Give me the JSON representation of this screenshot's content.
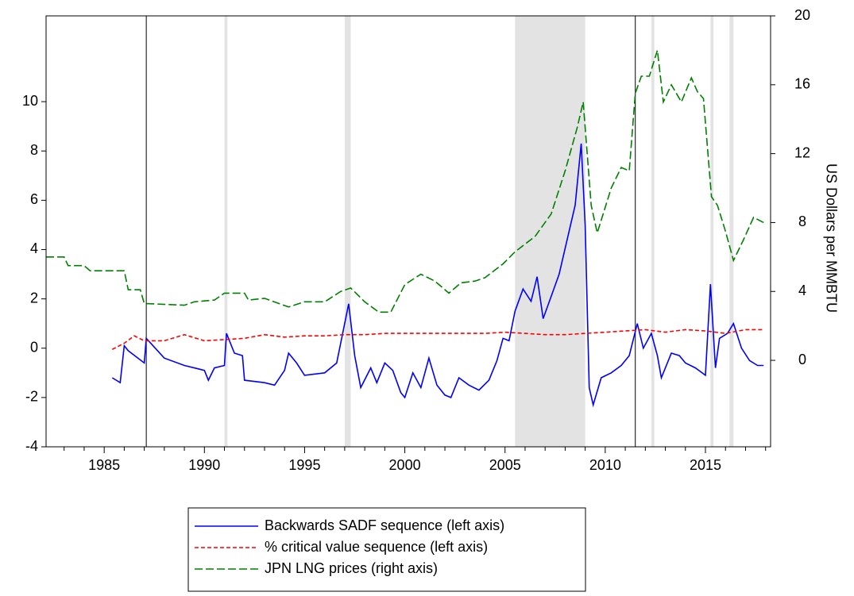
{
  "chart_data": {
    "type": "line",
    "y2label": "US Dollars per MMBTU",
    "xlim": [
      1982.1,
      2018.25
    ],
    "xticks": [
      1985,
      1990,
      1995,
      2000,
      2005,
      2010,
      2015
    ],
    "xminorticks": [
      1983,
      1984,
      1986,
      1987,
      1988,
      1989,
      1991,
      1992,
      1993,
      1994,
      1996,
      1997,
      1998,
      1999,
      2001,
      2002,
      2003,
      2004,
      2006,
      2007,
      2008,
      2009,
      2011,
      2012,
      2013,
      2014,
      2016,
      2017,
      2018
    ],
    "ylim": [
      -4,
      13.48
    ],
    "yticks": [
      -4,
      -2,
      0,
      2,
      4,
      6,
      8,
      10
    ],
    "y2lim": [
      -5.02,
      20
    ],
    "y2ticks": [
      0,
      4,
      8,
      12,
      16,
      20
    ],
    "shaded_periods": [
      [
        1991.0,
        1991.15
      ],
      [
        1997.0,
        1997.3
      ],
      [
        2005.5,
        2009.0
      ],
      [
        2012.3,
        2012.45
      ],
      [
        2015.25,
        2015.4
      ],
      [
        2016.2,
        2016.4
      ]
    ],
    "vertical_lines": [
      1987.1,
      2011.5
    ],
    "series": [
      {
        "name": "Backwards SADF sequence (left axis)",
        "color": "#0000ff",
        "dash": "none",
        "x": [
          1985.4,
          1985.8,
          1986.0,
          1986.2,
          1987.0,
          1987.1,
          1988,
          1989,
          1990,
          1990.2,
          1990.5,
          1991.0,
          1991.1,
          1991.5,
          1991.9,
          1992,
          1993,
          1993.5,
          1994,
          1994.2,
          1994.6,
          1995,
          1996,
          1996.6,
          1997.2,
          1997.5,
          1997.8,
          1998.3,
          1998.6,
          1999,
          1999.4,
          1999.8,
          2000,
          2000.4,
          2000.8,
          2001.2,
          2001.6,
          2002,
          2002.3,
          2002.7,
          2003.2,
          2003.7,
          2004.2,
          2004.6,
          2004.9,
          2005.2,
          2005.5,
          2005.9,
          2006.3,
          2006.6,
          2006.9,
          2007.3,
          2007.7,
          2008.1,
          2008.5,
          2008.8,
          2009.0,
          2009.2,
          2009.4,
          2009.8,
          2010.3,
          2010.8,
          2011.2,
          2011.6,
          2011.9,
          2012.3,
          2012.6,
          2012.8,
          2013.3,
          2013.7,
          2014,
          2014.5,
          2015.0,
          2015.25,
          2015.5,
          2015.7,
          2016.1,
          2016.4,
          2016.8,
          2017.2,
          2017.6,
          2017.9
        ],
        "values": [
          -1.2,
          -1.4,
          0.1,
          -0.1,
          -0.6,
          0.4,
          -0.4,
          -0.7,
          -0.9,
          -1.3,
          -0.8,
          -0.7,
          0.6,
          -0.2,
          -0.3,
          -1.3,
          -1.4,
          -1.5,
          -0.9,
          -0.2,
          -0.6,
          -1.1,
          -1.0,
          -0.6,
          1.8,
          -0.3,
          -1.6,
          -0.8,
          -1.4,
          -0.6,
          -0.9,
          -1.8,
          -2.0,
          -1.0,
          -1.6,
          -0.4,
          -1.5,
          -1.9,
          -2.0,
          -1.2,
          -1.5,
          -1.7,
          -1.3,
          -0.5,
          0.4,
          0.3,
          1.5,
          2.4,
          1.9,
          2.9,
          1.2,
          2.1,
          3.0,
          4.4,
          5.8,
          8.3,
          5.0,
          -1.6,
          -2.3,
          -1.2,
          -1.0,
          -0.7,
          -0.3,
          1.0,
          0.0,
          0.6,
          -0.3,
          -1.2,
          -0.2,
          -0.3,
          -0.6,
          -0.8,
          -1.1,
          2.6,
          -0.8,
          0.4,
          0.6,
          1.0,
          0.0,
          -0.5,
          -0.7,
          -0.7
        ]
      },
      {
        "name": "% critical value sequence (left axis)",
        "color": "#ff0000",
        "dash": "5,3",
        "x": [
          1985.4,
          1986,
          1986.5,
          1987,
          1988,
          1989,
          1990,
          1991,
          1992,
          1993,
          1994,
          1995,
          1996,
          1997,
          1998,
          1999,
          2000,
          2001,
          2002,
          2003,
          2004,
          2005,
          2006,
          2007,
          2008,
          2009,
          2010,
          2011,
          2012,
          2013,
          2014,
          2015,
          2016,
          2017,
          2017.9
        ],
        "values": [
          -0.05,
          0.2,
          0.5,
          0.3,
          0.3,
          0.55,
          0.3,
          0.35,
          0.4,
          0.55,
          0.45,
          0.5,
          0.5,
          0.55,
          0.55,
          0.6,
          0.6,
          0.6,
          0.6,
          0.6,
          0.6,
          0.65,
          0.6,
          0.55,
          0.55,
          0.6,
          0.65,
          0.7,
          0.75,
          0.65,
          0.75,
          0.7,
          0.6,
          0.75,
          0.75
        ]
      },
      {
        "name": "JPN LNG prices (right axis)",
        "color": "#008000",
        "dash": "10,4",
        "axis": "y2",
        "x": [
          1982.1,
          1983,
          1983.2,
          1984,
          1984.3,
          1986,
          1986.2,
          1986.8,
          1987.0,
          1989,
          1989.5,
          1990.5,
          1991,
          1992,
          1992.2,
          1993,
          1994.2,
          1995,
          1996,
          1996.8,
          1997.3,
          1998,
          1998.7,
          1999.3,
          2000,
          2000.8,
          2001.5,
          2002.2,
          2002.8,
          2003.5,
          2004,
          2004.9,
          2005.5,
          2006.5,
          2007.3,
          2008.0,
          2008.6,
          2008.9,
          2009.3,
          2009.6,
          2010.3,
          2010.8,
          2011.2,
          2011.5,
          2011.8,
          2012.2,
          2012.6,
          2012.9,
          2013.3,
          2013.8,
          2014.3,
          2014.6,
          2014.9,
          2015.3,
          2015.6,
          2016.0,
          2016.4,
          2016.9,
          2017.4,
          2017.9
        ],
        "values": [
          6.0,
          6.0,
          5.5,
          5.5,
          5.2,
          5.2,
          4.1,
          4.1,
          3.3,
          3.2,
          3.4,
          3.5,
          3.9,
          3.9,
          3.5,
          3.6,
          3.1,
          3.4,
          3.4,
          4.0,
          4.2,
          3.4,
          2.8,
          2.8,
          4.4,
          5.0,
          4.6,
          3.9,
          4.5,
          4.6,
          4.8,
          5.6,
          6.3,
          7.2,
          8.5,
          11.0,
          13.5,
          15.0,
          9.0,
          7.4,
          10.0,
          11.2,
          11.0,
          15.5,
          16.5,
          16.5,
          18.0,
          15.0,
          16.0,
          15.0,
          16.4,
          15.6,
          15.2,
          9.5,
          9.0,
          7.5,
          5.8,
          7.0,
          8.3,
          8.0
        ]
      }
    ]
  }
}
